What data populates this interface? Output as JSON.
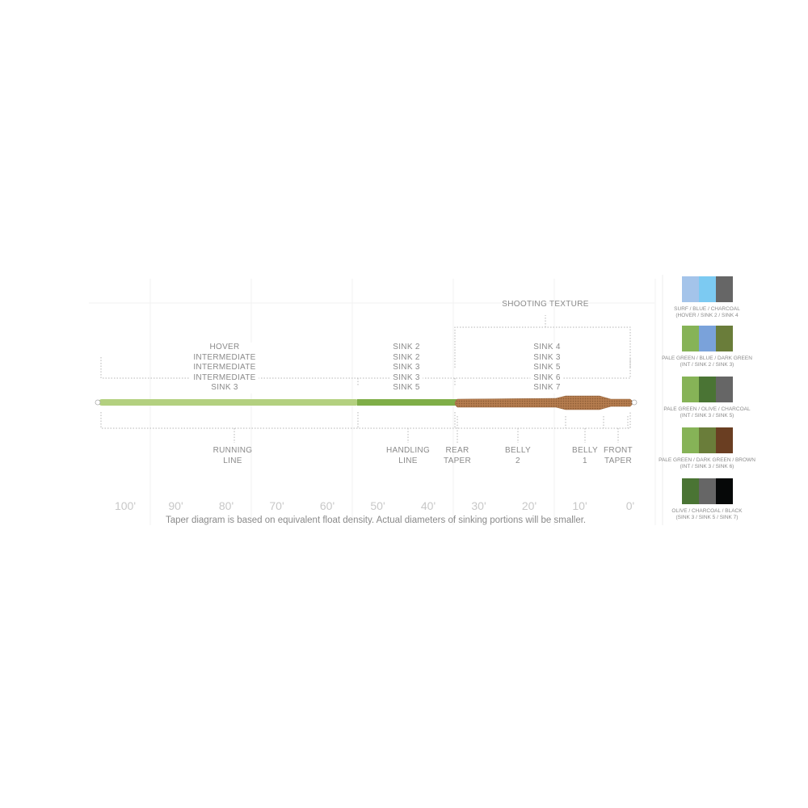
{
  "axis": {
    "unit": "feet",
    "ticks": [
      "100'",
      "90'",
      "80'",
      "70'",
      "60'",
      "50'",
      "40'",
      "30'",
      "20'",
      "10'",
      "0'"
    ]
  },
  "top_labels": {
    "shooting": "SHOOTING TEXTURE",
    "running": [
      "HOVER",
      "INTERMEDIATE",
      "INTERMEDIATE",
      "INTERMEDIATE",
      "SINK 3"
    ],
    "handling": [
      "SINK 2",
      "SINK 2",
      "SINK 3",
      "SINK 3",
      "SINK 5"
    ],
    "head": [
      "SINK 4",
      "SINK 3",
      "SINK 5",
      "SINK 6",
      "SINK 7"
    ]
  },
  "sections": [
    {
      "label": [
        "RUNNING",
        "LINE"
      ]
    },
    {
      "label": [
        "HANDLING",
        "LINE"
      ]
    },
    {
      "label": [
        "REAR",
        "TAPER"
      ]
    },
    {
      "label": [
        "BELLY",
        "2"
      ]
    },
    {
      "label": [
        "BELLY",
        "1"
      ]
    },
    {
      "label": [
        "FRONT",
        "TAPER"
      ]
    }
  ],
  "note": "Taper diagram is based on equivalent float density.  Actual diameters of sinking portions will be smaller.",
  "colors": {
    "running": "#b3d07f",
    "handling": "#7fae48",
    "head": "#b0784a"
  },
  "swatches": [
    {
      "colors": [
        "#a4c4ea",
        "#7ccaf2",
        "#666666"
      ],
      "line1": "SURF / BLUE / CHARCOAL",
      "line2": "(HOVER / SINK 2 / SINK 4"
    },
    {
      "colors": [
        "#86b357",
        "#7aa2da",
        "#6a7d3a"
      ],
      "line1": "PALE GREEN / BLUE / DARK GREEN",
      "line2": "(INT / SINK 2 / SINK 3)"
    },
    {
      "colors": [
        "#86b357",
        "#4a7434",
        "#666666"
      ],
      "line1": "PALE GREEN / OLIVE / CHARCOAL",
      "line2": "(INT / SINK 3 / SINK 5)"
    },
    {
      "colors": [
        "#86b357",
        "#6a7d3a",
        "#6a3e22"
      ],
      "line1": "PALE GREEN / DARK GREEN / BROWN",
      "line2": "(INT / SINK 3 / SINK 6)"
    },
    {
      "colors": [
        "#4a7434",
        "#666666",
        "#060808"
      ],
      "line1": "OLIVE / CHARCOAL / BLACK",
      "line2": "(SINK 3 / SINK 5 / SINK 7)"
    }
  ]
}
